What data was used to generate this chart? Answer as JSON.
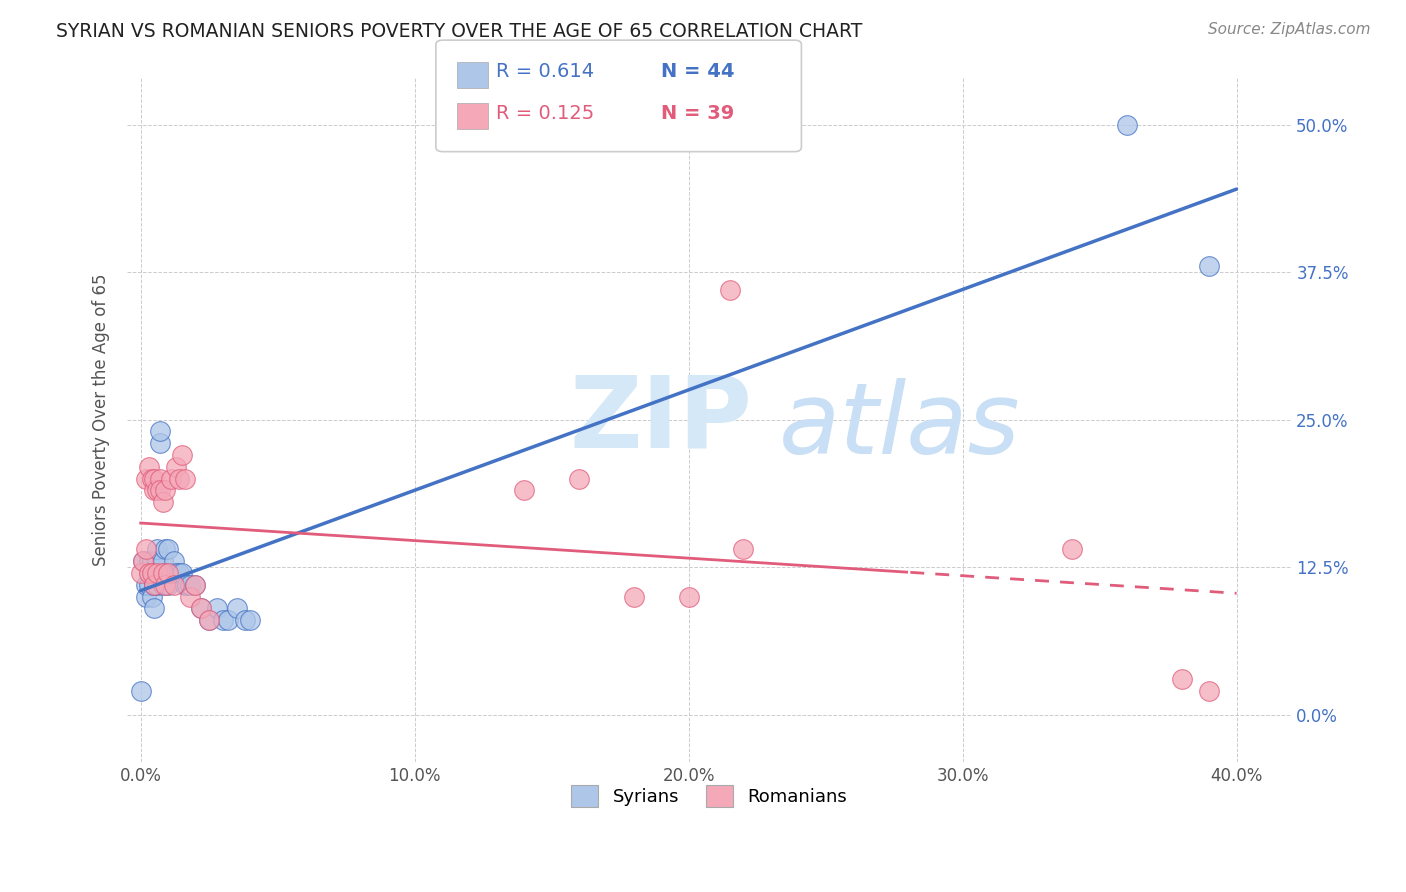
{
  "title": "SYRIAN VS ROMANIAN SENIORS POVERTY OVER THE AGE OF 65 CORRELATION CHART",
  "source": "Source: ZipAtlas.com",
  "ylabel": "Seniors Poverty Over the Age of 65",
  "xlabel_ticks": [
    "0.0%",
    "10.0%",
    "20.0%",
    "30.0%",
    "40.0%"
  ],
  "ylabel_ticks": [
    "0.0%",
    "12.5%",
    "25.0%",
    "37.5%",
    "50.0%"
  ],
  "xlim": [
    -0.005,
    0.42
  ],
  "ylim": [
    -0.04,
    0.54
  ],
  "syrian_color": "#aec6e8",
  "romanian_color": "#f4a8b8",
  "syrian_line_color": "#4472c4",
  "romanian_line_color": "#e05c7a",
  "background_color": "#ffffff",
  "grid_color": "#cccccc",
  "watermark_zip_color": "#d5e8f7",
  "watermark_atlas_color": "#c8dff5",
  "legend_label_1": "Syrians",
  "legend_label_2": "Romanians",
  "syrians_x": [
    0.0,
    0.001,
    0.002,
    0.002,
    0.003,
    0.003,
    0.003,
    0.004,
    0.004,
    0.004,
    0.005,
    0.005,
    0.005,
    0.005,
    0.006,
    0.006,
    0.006,
    0.007,
    0.007,
    0.008,
    0.008,
    0.009,
    0.009,
    0.01,
    0.01,
    0.011,
    0.012,
    0.013,
    0.014,
    0.015,
    0.016,
    0.017,
    0.018,
    0.02,
    0.022,
    0.025,
    0.028,
    0.03,
    0.032,
    0.035,
    0.038,
    0.04,
    0.36,
    0.39
  ],
  "syrians_y": [
    0.02,
    0.13,
    0.1,
    0.11,
    0.11,
    0.12,
    0.13,
    0.1,
    0.12,
    0.13,
    0.11,
    0.12,
    0.11,
    0.09,
    0.13,
    0.11,
    0.14,
    0.23,
    0.24,
    0.13,
    0.11,
    0.14,
    0.12,
    0.14,
    0.11,
    0.12,
    0.13,
    0.12,
    0.12,
    0.12,
    0.11,
    0.11,
    0.11,
    0.11,
    0.09,
    0.08,
    0.09,
    0.08,
    0.08,
    0.09,
    0.08,
    0.08,
    0.5,
    0.38
  ],
  "romanians_x": [
    0.0,
    0.001,
    0.002,
    0.002,
    0.003,
    0.003,
    0.004,
    0.004,
    0.005,
    0.005,
    0.005,
    0.006,
    0.006,
    0.007,
    0.007,
    0.008,
    0.008,
    0.009,
    0.009,
    0.01,
    0.011,
    0.012,
    0.013,
    0.014,
    0.015,
    0.016,
    0.018,
    0.02,
    0.022,
    0.025,
    0.14,
    0.16,
    0.18,
    0.2,
    0.215,
    0.22,
    0.34,
    0.38,
    0.39
  ],
  "romanians_y": [
    0.12,
    0.13,
    0.14,
    0.2,
    0.12,
    0.21,
    0.12,
    0.2,
    0.19,
    0.11,
    0.2,
    0.19,
    0.12,
    0.2,
    0.19,
    0.18,
    0.12,
    0.19,
    0.11,
    0.12,
    0.2,
    0.11,
    0.21,
    0.2,
    0.22,
    0.2,
    0.1,
    0.11,
    0.09,
    0.08,
    0.19,
    0.2,
    0.1,
    0.1,
    0.36,
    0.14,
    0.14,
    0.03,
    0.02
  ]
}
